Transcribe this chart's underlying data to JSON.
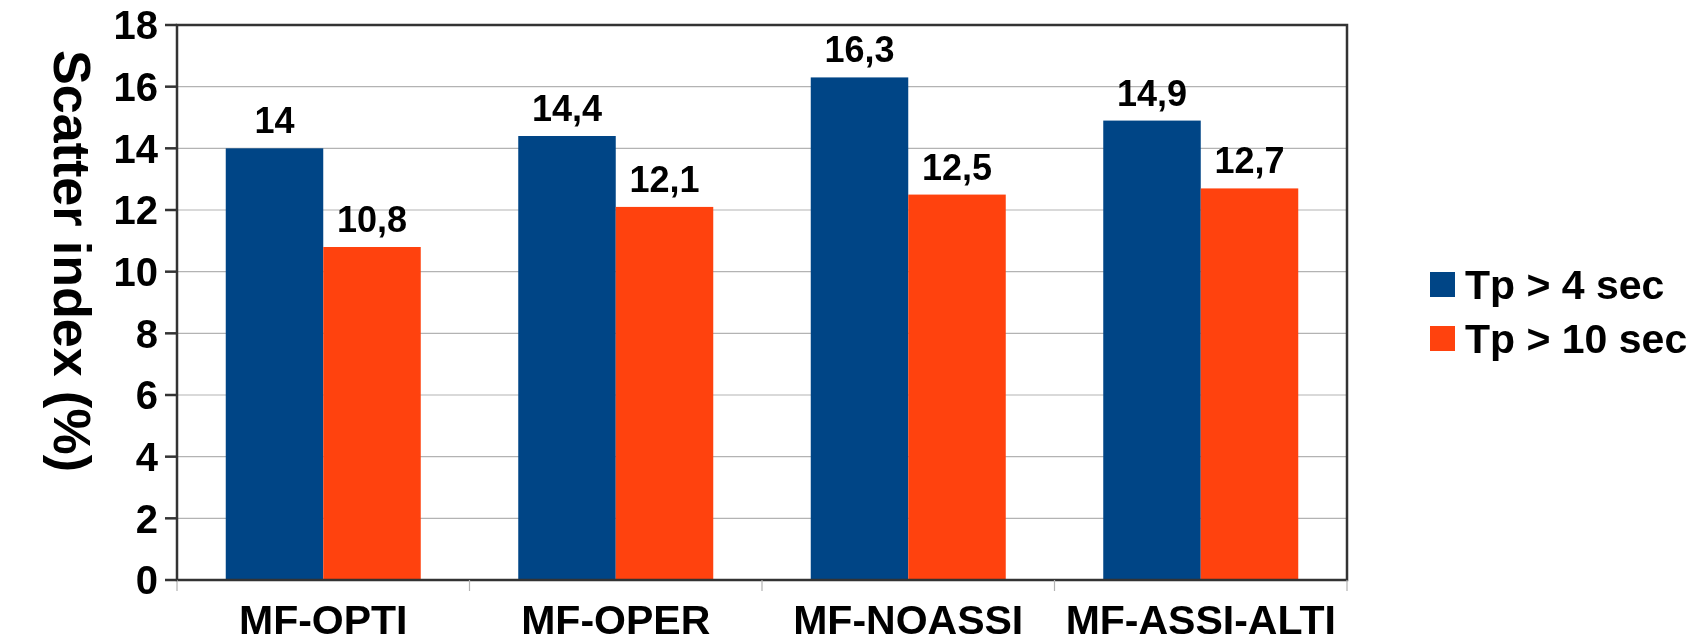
{
  "chart_data": {
    "type": "bar",
    "categories": [
      "MF-OPTI",
      "MF-OPER",
      "MF-NOASSI",
      "MF-ASSI-ALTI"
    ],
    "series": [
      {
        "name": "Tp > 4 sec",
        "color": "#004586",
        "values": [
          14,
          14.4,
          16.3,
          14.9
        ],
        "value_labels": [
          "14",
          "14,4",
          "16,3",
          "14,9"
        ]
      },
      {
        "name": "Tp > 10 sec",
        "color": "#ff420e",
        "values": [
          10.8,
          12.1,
          12.5,
          12.7
        ],
        "value_labels": [
          "10,8",
          "12,1",
          "12,5",
          "12,7"
        ]
      }
    ],
    "ylabel": "Scatter index (%)",
    "ylim": [
      0,
      18
    ],
    "yticks": [
      0,
      2,
      4,
      6,
      8,
      10,
      12,
      14,
      16,
      18
    ],
    "grid": "y",
    "legend": "right"
  }
}
